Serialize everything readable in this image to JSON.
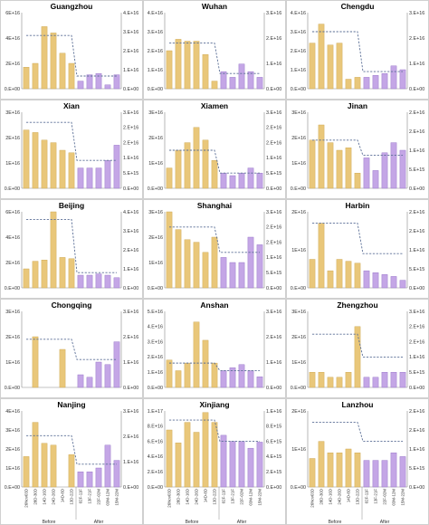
{
  "x_categories": [
    "26Nov03D",
    "28D-30D",
    "14D-16D",
    "24D-26D",
    "14D-8D",
    "13D-22D",
    "02F-11F",
    "13F-21F",
    "22F-02M",
    "03M-12M",
    "15M-22M"
  ],
  "groups": [
    "Before",
    "After"
  ],
  "colors": {
    "before": "#e9c77a",
    "before_edge": "#c9a24a",
    "after": "#c4a6e6",
    "after_edge": "#8f6bc4",
    "line": "#5b6f96",
    "border": "#d0d0d0"
  },
  "chart_data": [
    {
      "type": "bar",
      "title": "Guangzhou",
      "ylim": [
        0,
        6e+16
      ],
      "yticks": [
        "0.E+00",
        "2E+16",
        "4E+16",
        "6E+16"
      ],
      "y2lim": [
        0,
        4e+16
      ],
      "y2ticks": [
        "0.E+00",
        "1.E+16",
        "2.E+16",
        "3.E+16",
        "4.E+16"
      ],
      "values": [
        1.7e+16,
        2e+16,
        4.9e+16,
        4.4e+16,
        2.8e+16,
        2e+16,
        6000000000000000.0,
        1.1e+16,
        1.2e+16,
        3000000000000000.0,
        1.1e+16
      ],
      "mean_before": 4.2e+16,
      "mean_after": 1e+16
    },
    {
      "type": "bar",
      "title": "Wuhan",
      "ylim": [
        0,
        4e+16
      ],
      "yticks": [
        "0.E+00",
        "1.E+16",
        "2.E+16",
        "3.E+16",
        "4.E+16"
      ],
      "y2lim": [
        0,
        3e+16
      ],
      "y2ticks": [
        "0.E+00",
        "1.E+16",
        "2.E+16",
        "3.E+16"
      ],
      "values": [
        2e+16,
        2.6e+16,
        2.5e+16,
        2.5e+16,
        1.8e+16,
        4000000000000000.0,
        9000000000000000.0,
        6000000000000000.0,
        1.3e+16,
        9000000000000000.0,
        6000000000000000.0
      ],
      "mean_before": 2.4e+16,
      "mean_after": 8000000000000000.0
    },
    {
      "type": "bar",
      "title": "Chengdu",
      "ylim": [
        0,
        4e+16
      ],
      "yticks": [
        "0.E+00",
        "1.E+16",
        "2.E+16",
        "3.E+16",
        "4.E+16"
      ],
      "y2lim": [
        0,
        3e+16
      ],
      "y2ticks": [
        "0.E+00",
        "1.E+16",
        "2.E+16",
        "3.E+16"
      ],
      "values": [
        2.4e+16,
        3.4e+16,
        2.3e+16,
        2.4e+16,
        5000000000000000.0,
        6000000000000000.0,
        6000000000000000.0,
        7000000000000000.0,
        8000000000000000.0,
        1.2e+16,
        1e+16
      ],
      "mean_before": 3e+16,
      "mean_after": 9000000000000000.0
    },
    {
      "type": "bar",
      "title": "Xian",
      "ylim": [
        0,
        3e+16
      ],
      "yticks": [
        "0.E+00",
        "1E+16",
        "2E+16",
        "3E+16"
      ],
      "y2lim": [
        0,
        3e+16
      ],
      "y2ticks": [
        "0.E+00",
        "5.E+15",
        "1.E+16",
        "2.E+16",
        "2.E+16",
        "3.E+16"
      ],
      "values": [
        2.3e+16,
        2.2e+16,
        1.9e+16,
        1.8e+16,
        1.5e+16,
        1.4e+16,
        8000000000000000.0,
        8000000000000000.0,
        8000000000000000.0,
        1.1e+16,
        1.7e+16
      ],
      "mean_before": 2.6e+16,
      "mean_after": 1.1e+16
    },
    {
      "type": "bar",
      "title": "Xiamen",
      "ylim": [
        0,
        3e+16
      ],
      "yticks": [
        "0.E+00",
        "1E+16",
        "2E+16",
        "3E+16"
      ],
      "y2lim": [
        0,
        3e+16
      ],
      "y2ticks": [
        "0.E+00",
        "5.E+15",
        "1.E+16",
        "2.E+16",
        "2.E+16",
        "3.E+16"
      ],
      "values": [
        8000000000000000.0,
        1.5e+16,
        1.8e+16,
        2.4e+16,
        1.9e+16,
        1.1e+16,
        6000000000000000.0,
        5000000000000000.0,
        6000000000000000.0,
        8000000000000000.0,
        6000000000000000.0
      ],
      "mean_before": 1.5e+16,
      "mean_after": 6000000000000000.0
    },
    {
      "type": "bar",
      "title": "Jinan",
      "ylim": [
        0,
        3e+16
      ],
      "yticks": [
        "0.E+00",
        "1E+16",
        "2E+16",
        "3E+16"
      ],
      "y2lim": [
        0,
        2.5e+16
      ],
      "y2ticks": [
        "0.E+00",
        "5.E+15",
        "1.E+16",
        "2.E+16",
        "2.E+16"
      ],
      "values": [
        1.9e+16,
        2.5e+16,
        1.8e+16,
        1.5e+16,
        1.6e+16,
        6000000000000000.0,
        1.2e+16,
        7000000000000000.0,
        1.4e+16,
        1.8e+16,
        1.5e+16
      ],
      "mean_before": 1.9e+16,
      "mean_after": 1.3e+16
    },
    {
      "type": "bar",
      "title": "Beijing",
      "ylim": [
        0,
        6e+16
      ],
      "yticks": [
        "0.E+00",
        "2E+16",
        "4E+16",
        "6E+16"
      ],
      "y2lim": [
        0,
        4e+16
      ],
      "y2ticks": [
        "0.E+00",
        "1.E+16",
        "2.E+16",
        "3.E+16",
        "4.E+16"
      ],
      "values": [
        1.5e+16,
        2.1e+16,
        2.2e+16,
        6e+16,
        2.4e+16,
        2.3e+16,
        1e+16,
        1e+16,
        1.1e+16,
        1e+16,
        8000000000000000.0
      ],
      "mean_before": 5.4e+16,
      "mean_after": 1.2e+16
    },
    {
      "type": "bar",
      "title": "Shanghai",
      "ylim": [
        0,
        3e+16
      ],
      "yticks": [
        "0.E+00",
        "1E+16",
        "2E+16",
        "3E+16"
      ],
      "y2lim": [
        0,
        3e+16
      ],
      "y2ticks": [
        "0.E+00",
        "5.E+15",
        "1.E+16",
        "2.E+16",
        "2.E+16",
        "3.E+16"
      ],
      "values": [
        3e+16,
        2.3e+16,
        1.9e+16,
        1.8e+16,
        1.4e+16,
        2e+16,
        1.2e+16,
        1e+16,
        1e+16,
        2e+16,
        1.7e+16
      ],
      "mean_before": 2.4e+16,
      "mean_after": 1.4e+16
    },
    {
      "type": "bar",
      "title": "Harbin",
      "ylim": [
        0,
        2e+16
      ],
      "yticks": [
        "0.E+00",
        "1E+16",
        "2E+16"
      ],
      "y2lim": [
        0,
        2.5e+16
      ],
      "y2ticks": [
        "0.E+00",
        "5.E+15",
        "1.E+16",
        "2.E+16",
        "2.E+16"
      ],
      "values": [
        7500000000000000.0,
        1.7e+16,
        4500000000000000.0,
        7500000000000000.0,
        7000000000000000.0,
        6500000000000000.0,
        4500000000000000.0,
        4000000000000000.0,
        3500000000000000.0,
        3000000000000000.0,
        2000000000000000.0
      ],
      "mean_before": 1.7e+16,
      "mean_after": 9000000000000000.0
    },
    {
      "type": "bar",
      "title": "Chongqing",
      "ylim": [
        0,
        3e+16
      ],
      "yticks": [
        "0.E+00",
        "1E+16",
        "2E+16",
        "3E+16"
      ],
      "y2lim": [
        0,
        3e+16
      ],
      "y2ticks": [
        "0.E+00",
        "1.E+16",
        "2.E+16",
        "3.E+16"
      ],
      "values": [
        0,
        2e+16,
        0,
        0,
        1.5e+16,
        0,
        5000000000000000.0,
        4000000000000000.0,
        1e+16,
        9000000000000000.0,
        1.8e+16
      ],
      "mean_before": 1.9e+16,
      "mean_after": 1.1e+16
    },
    {
      "type": "bar",
      "title": "Anshan",
      "ylim": [
        0,
        5e+16
      ],
      "yticks": [
        "0.E+00",
        "1.E+16",
        "2.E+16",
        "3.E+16",
        "4.E+16",
        "5.E+16"
      ],
      "y2lim": [
        0,
        3e+16
      ],
      "y2ticks": [
        "0.E+00",
        "1.E+16",
        "2.E+16",
        "3.E+16"
      ],
      "values": [
        1.8e+16,
        1.1e+16,
        1.6e+16,
        4.3e+16,
        3.1e+16,
        1.6e+16,
        1.1e+16,
        1.3e+16,
        1.5e+16,
        1.1e+16,
        7000000000000000.0
      ],
      "mean_before": 1.6e+16,
      "mean_after": 1.1e+16
    },
    {
      "type": "bar",
      "title": "Zhengzhou",
      "ylim": [
        0,
        3e+16
      ],
      "yticks": [
        "0.E+00",
        "1E+16",
        "2E+16",
        "3E+16"
      ],
      "y2lim": [
        0,
        2.5e+16
      ],
      "y2ticks": [
        "0.E+00",
        "5.E+15",
        "1.E+16",
        "2.E+16",
        "2.E+16",
        "3.E+16"
      ],
      "values": [
        6000000000000000.0,
        6000000000000000.0,
        4000000000000000.0,
        4000000000000000.0,
        6000000000000000.0,
        2.4e+16,
        4000000000000000.0,
        4000000000000000.0,
        6000000000000000.0,
        6000000000000000.0,
        6000000000000000.0
      ],
      "mean_before": 2.1e+16,
      "mean_after": 1.2e+16
    },
    {
      "type": "bar",
      "title": "Nanjing",
      "ylim": [
        0,
        4e+16
      ],
      "yticks": [
        "0.E+00",
        "1E+16",
        "2E+16",
        "3E+16",
        "4E+16"
      ],
      "y2lim": [
        0,
        3e+16
      ],
      "y2ticks": [
        "0.E+00",
        "1.E+16",
        "2.E+16",
        "3.E+16"
      ],
      "values": [
        1.6e+16,
        3.4e+16,
        2.3e+16,
        2.2e+16,
        0,
        1.7e+16,
        8000000000000000.0,
        8000000000000000.0,
        1e+16,
        2.2e+16,
        1.4e+16
      ],
      "mean_before": 2.7e+16,
      "mean_after": 1.2e+16
    },
    {
      "type": "bar",
      "title": "Xinjiang",
      "ylim": [
        0,
        1e+17
      ],
      "yticks": [
        "0.E+00",
        "2.E+16",
        "4.E+16",
        "6.E+16",
        "8.E+16",
        "1.E+17"
      ],
      "y2lim": [
        0,
        1e+16
      ],
      "y2ticks": [
        "0.E+00",
        "2.E+15",
        "4.E+15",
        "6.E+15",
        "8.E+15",
        "1.E+16"
      ],
      "values": [
        7.5e+16,
        5.8e+16,
        8.5e+16,
        7.2e+16,
        9.8e+16,
        8.5e+16,
        6.8e+16,
        6e+16,
        6e+16,
        5.1e+16,
        5.9e+16
      ],
      "mean_before": 8.8e+16,
      "mean_after": 6e+16
    },
    {
      "type": "bar",
      "title": "Lanzhou",
      "ylim": [
        0,
        2e+16
      ],
      "yticks": [
        "0.E+00",
        "1E+16",
        "2E+16"
      ],
      "y2lim": [
        0,
        2e+16
      ],
      "y2ticks": [
        "0.E+00",
        "5.E+15",
        "1.E+16",
        "2.E+16",
        "2.E+16"
      ],
      "values": [
        7500000000000000.0,
        1.2e+16,
        9000000000000000.0,
        9000000000000000.0,
        1e+16,
        9000000000000000.0,
        7000000000000000.0,
        7000000000000000.0,
        7000000000000000.0,
        9000000000000000.0,
        8000000000000000.0
      ],
      "mean_before": 1.7e+16,
      "mean_after": 1.2e+16
    }
  ]
}
